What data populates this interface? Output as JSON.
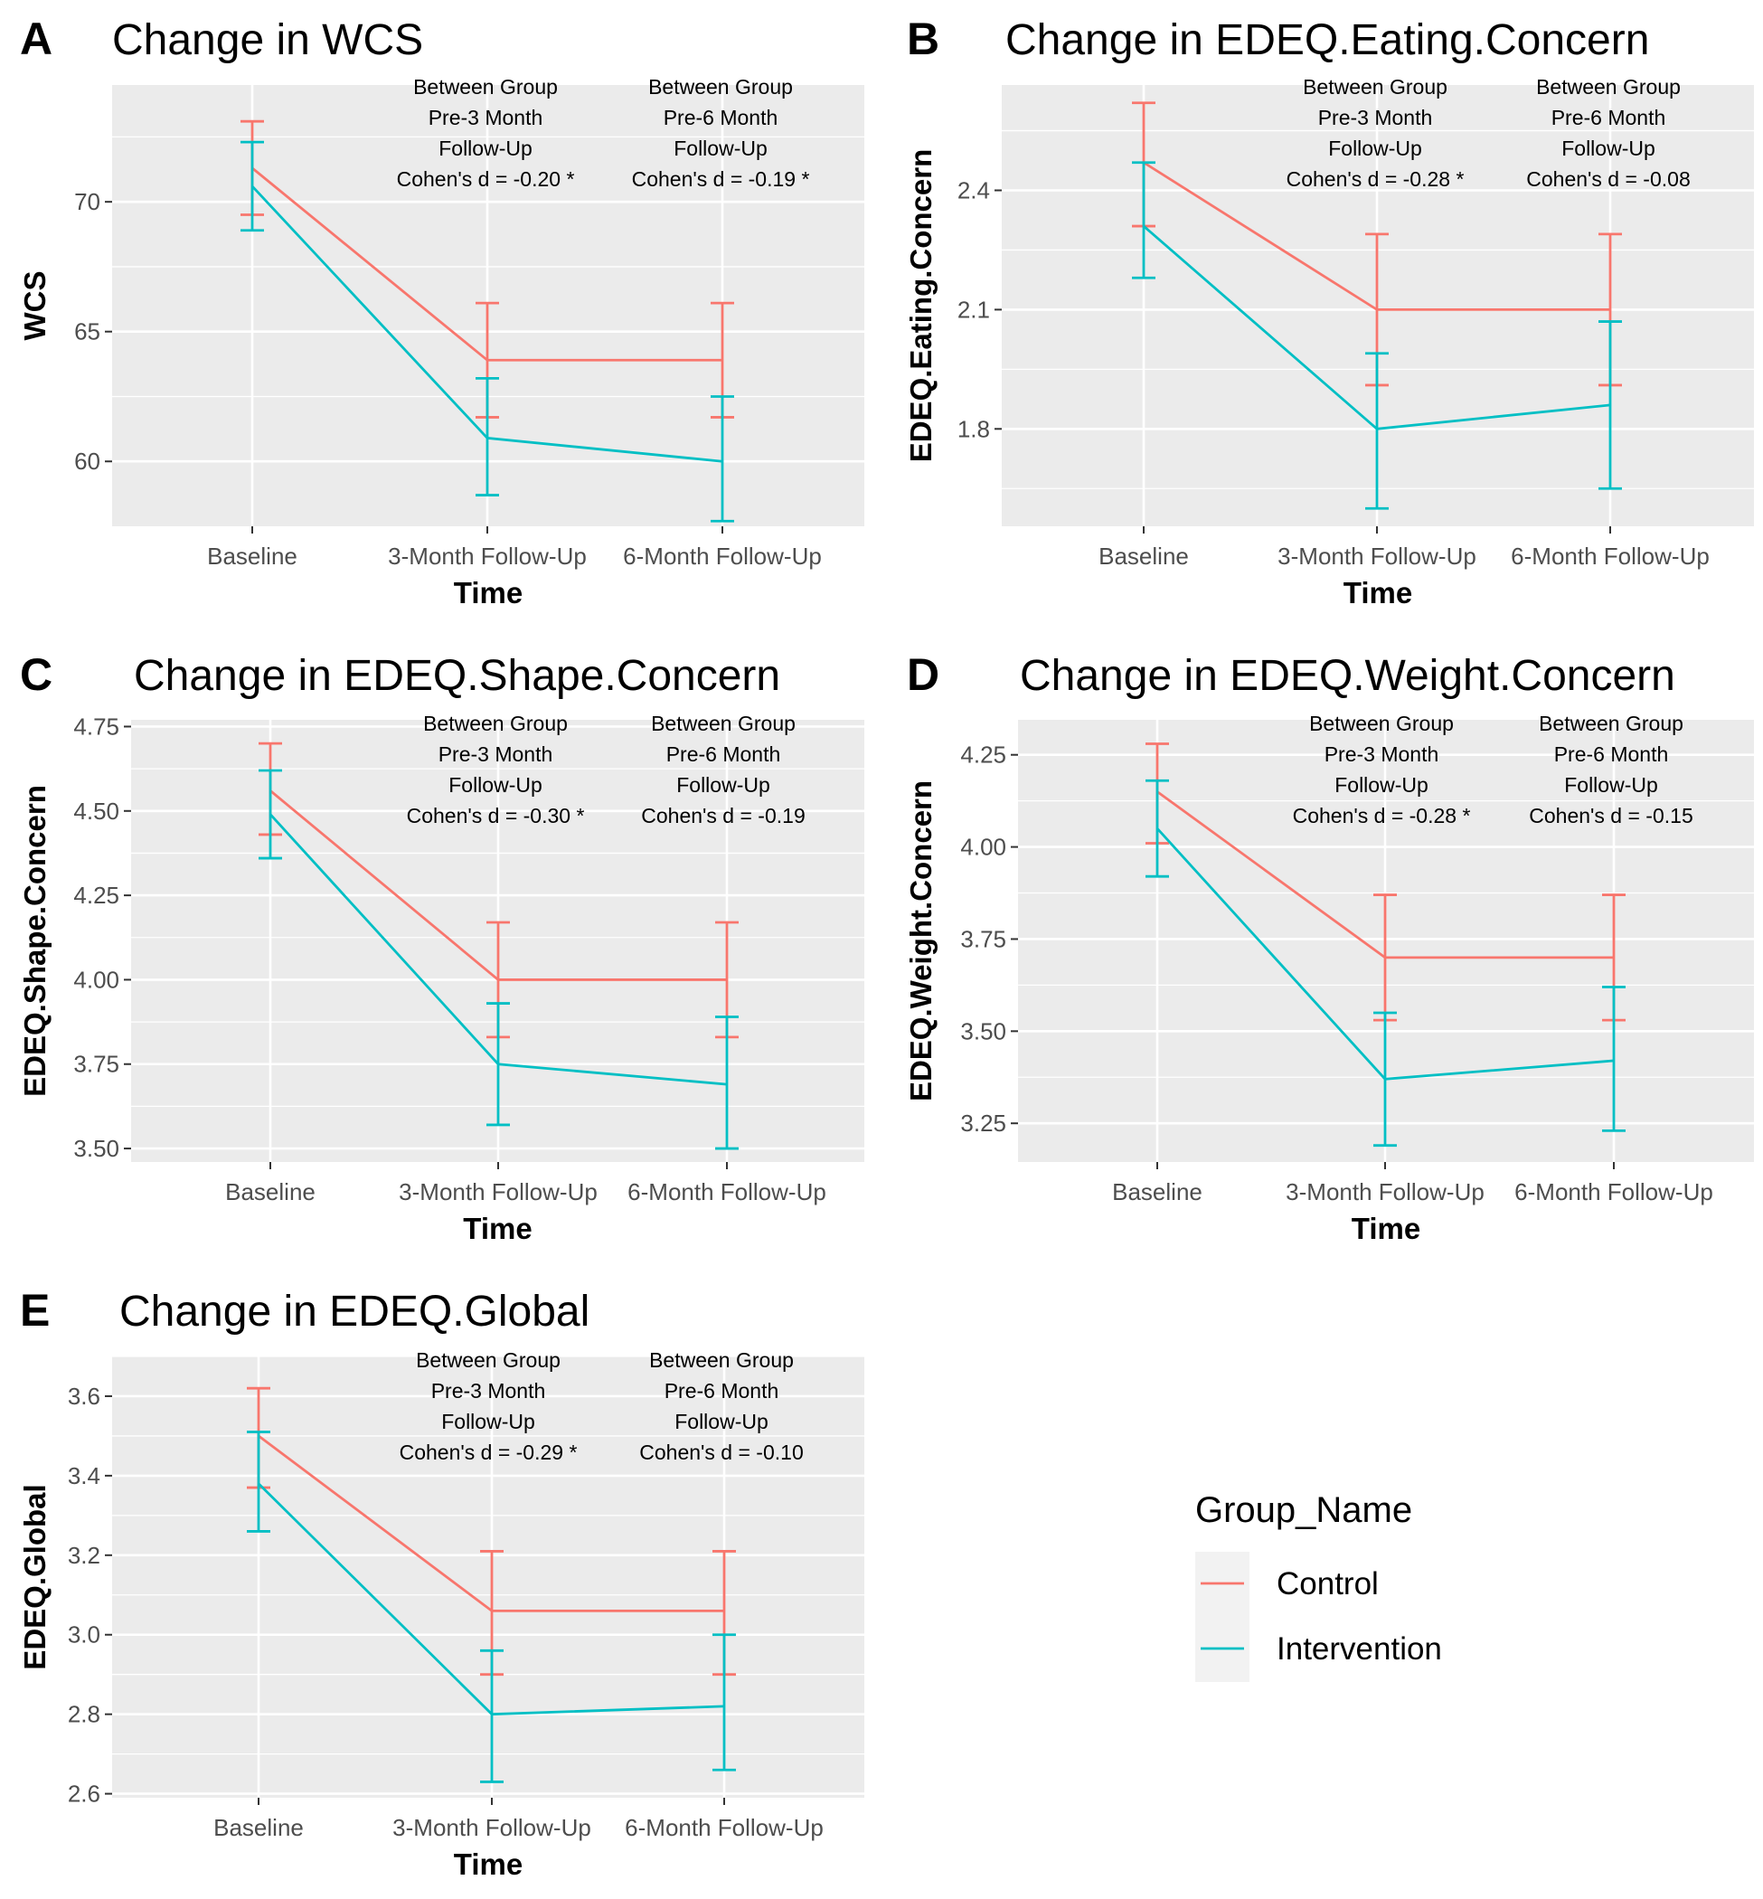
{
  "colors": {
    "control": "#F8766D",
    "intervention": "#00BFC4",
    "panel_bg": "#EBEBEB",
    "grid": "#FFFFFF"
  },
  "legend": {
    "title": "Group_Name",
    "entries": [
      {
        "label": "Control",
        "color": "#F8766D"
      },
      {
        "label": "Intervention",
        "color": "#00BFC4"
      }
    ]
  },
  "chart_data": [
    {
      "type": "line",
      "letter": "A",
      "title": "Change in WCS",
      "xlabel": "Time",
      "ylabel": "WCS",
      "categories": [
        "Baseline",
        "3-Month Follow-Up",
        "6-Month Follow-Up"
      ],
      "ylim": [
        57.5,
        74.5
      ],
      "yticks": [
        60,
        65,
        70
      ],
      "ytick_labels": [
        "60",
        "65",
        "70"
      ],
      "series": [
        {
          "name": "Control",
          "values": [
            71.3,
            63.9,
            63.9
          ],
          "lower": [
            69.5,
            61.7,
            61.7
          ],
          "upper": [
            73.1,
            66.1,
            66.1
          ]
        },
        {
          "name": "Intervention",
          "values": [
            70.6,
            60.9,
            60.0
          ],
          "lower": [
            68.9,
            58.7,
            57.7
          ],
          "upper": [
            72.3,
            63.2,
            62.5
          ]
        }
      ],
      "annotations": [
        [
          "Between Group",
          "Pre-3 Month",
          "Follow-Up",
          "Cohen's d = -0.20 *"
        ],
        [
          "Between Group",
          "Pre-6 Month",
          "Follow-Up",
          "Cohen's d = -0.19 *"
        ]
      ]
    },
    {
      "type": "line",
      "letter": "B",
      "title": "Change in EDEQ.Eating.Concern",
      "xlabel": "Time",
      "ylabel": "EDEQ.Eating.Concern",
      "categories": [
        "Baseline",
        "3-Month Follow-Up",
        "6-Month Follow-Up"
      ],
      "ylim": [
        1.555,
        2.665
      ],
      "yticks": [
        1.8,
        2.1,
        2.4
      ],
      "ytick_labels": [
        "1.8",
        "2.1",
        "2.4"
      ],
      "series": [
        {
          "name": "Control",
          "values": [
            2.47,
            2.1,
            2.1
          ],
          "lower": [
            2.31,
            1.91,
            1.91
          ],
          "upper": [
            2.62,
            2.29,
            2.29
          ]
        },
        {
          "name": "Intervention",
          "values": [
            2.31,
            1.8,
            1.86
          ],
          "lower": [
            2.18,
            1.6,
            1.65
          ],
          "upper": [
            2.47,
            1.99,
            2.07
          ]
        }
      ],
      "annotations": [
        [
          "Between Group",
          "Pre-3 Month",
          "Follow-Up",
          "Cohen's d = -0.28 *"
        ],
        [
          "Between Group",
          "Pre-6 Month",
          "Follow-Up",
          "Cohen's d = -0.08"
        ]
      ]
    },
    {
      "type": "line",
      "letter": "C",
      "title": "Change in EDEQ.Shape.Concern",
      "xlabel": "Time",
      "ylabel": "EDEQ.Shape.Concern",
      "categories": [
        "Baseline",
        "3-Month Follow-Up",
        "6-Month Follow-Up"
      ],
      "ylim": [
        3.46,
        4.77
      ],
      "yticks": [
        3.5,
        3.75,
        4.0,
        4.25,
        4.5,
        4.75
      ],
      "ytick_labels": [
        "3.50",
        "3.75",
        "4.00",
        "4.25",
        "4.50",
        "4.75"
      ],
      "series": [
        {
          "name": "Control",
          "values": [
            4.56,
            4.0,
            4.0
          ],
          "lower": [
            4.43,
            3.83,
            3.83
          ],
          "upper": [
            4.7,
            4.17,
            4.17
          ]
        },
        {
          "name": "Intervention",
          "values": [
            4.49,
            3.75,
            3.69
          ],
          "lower": [
            4.36,
            3.57,
            3.5
          ],
          "upper": [
            4.62,
            3.93,
            3.89
          ]
        }
      ],
      "annotations": [
        [
          "Between Group",
          "Pre-3 Month",
          "Follow-Up",
          "Cohen's d = -0.30 *"
        ],
        [
          "Between Group",
          "Pre-6 Month",
          "Follow-Up",
          "Cohen's d = -0.19"
        ]
      ]
    },
    {
      "type": "line",
      "letter": "D",
      "title": "Change in EDEQ.Weight.Concern",
      "xlabel": "Time",
      "ylabel": "EDEQ.Weight.Concern",
      "categories": [
        "Baseline",
        "3-Month Follow-Up",
        "6-Month Follow-Up"
      ],
      "ylim": [
        3.145,
        4.345
      ],
      "yticks": [
        3.25,
        3.5,
        3.75,
        4.0,
        4.25
      ],
      "ytick_labels": [
        "3.25",
        "3.50",
        "3.75",
        "4.00",
        "4.25"
      ],
      "series": [
        {
          "name": "Control",
          "values": [
            4.15,
            3.7,
            3.7
          ],
          "lower": [
            4.01,
            3.53,
            3.53
          ],
          "upper": [
            4.28,
            3.87,
            3.87
          ]
        },
        {
          "name": "Intervention",
          "values": [
            4.05,
            3.37,
            3.42
          ],
          "lower": [
            3.92,
            3.19,
            3.23
          ],
          "upper": [
            4.18,
            3.55,
            3.62
          ]
        }
      ],
      "annotations": [
        [
          "Between Group",
          "Pre-3 Month",
          "Follow-Up",
          "Cohen's d = -0.28 *"
        ],
        [
          "Between Group",
          "Pre-6 Month",
          "Follow-Up",
          "Cohen's d = -0.15"
        ]
      ]
    },
    {
      "type": "line",
      "letter": "E",
      "title": "Change in EDEQ.Global",
      "xlabel": "Time",
      "ylabel": "EDEQ.Global",
      "categories": [
        "Baseline",
        "3-Month Follow-Up",
        "6-Month Follow-Up"
      ],
      "ylim": [
        2.59,
        3.7
      ],
      "yticks": [
        2.6,
        2.8,
        3.0,
        3.2,
        3.4,
        3.6
      ],
      "ytick_labels": [
        "2.6",
        "2.8",
        "3.0",
        "3.2",
        "3.4",
        "3.6"
      ],
      "series": [
        {
          "name": "Control",
          "values": [
            3.5,
            3.06,
            3.06
          ],
          "lower": [
            3.37,
            2.9,
            2.9
          ],
          "upper": [
            3.62,
            3.21,
            3.21
          ]
        },
        {
          "name": "Intervention",
          "values": [
            3.38,
            2.8,
            2.82
          ],
          "lower": [
            3.26,
            2.63,
            2.66
          ],
          "upper": [
            3.51,
            2.96,
            3.0
          ]
        }
      ],
      "annotations": [
        [
          "Between Group",
          "Pre-3 Month",
          "Follow-Up",
          "Cohen's d = -0.29 *"
        ],
        [
          "Between Group",
          "Pre-6 Month",
          "Follow-Up",
          "Cohen's d = -0.10"
        ]
      ]
    }
  ]
}
